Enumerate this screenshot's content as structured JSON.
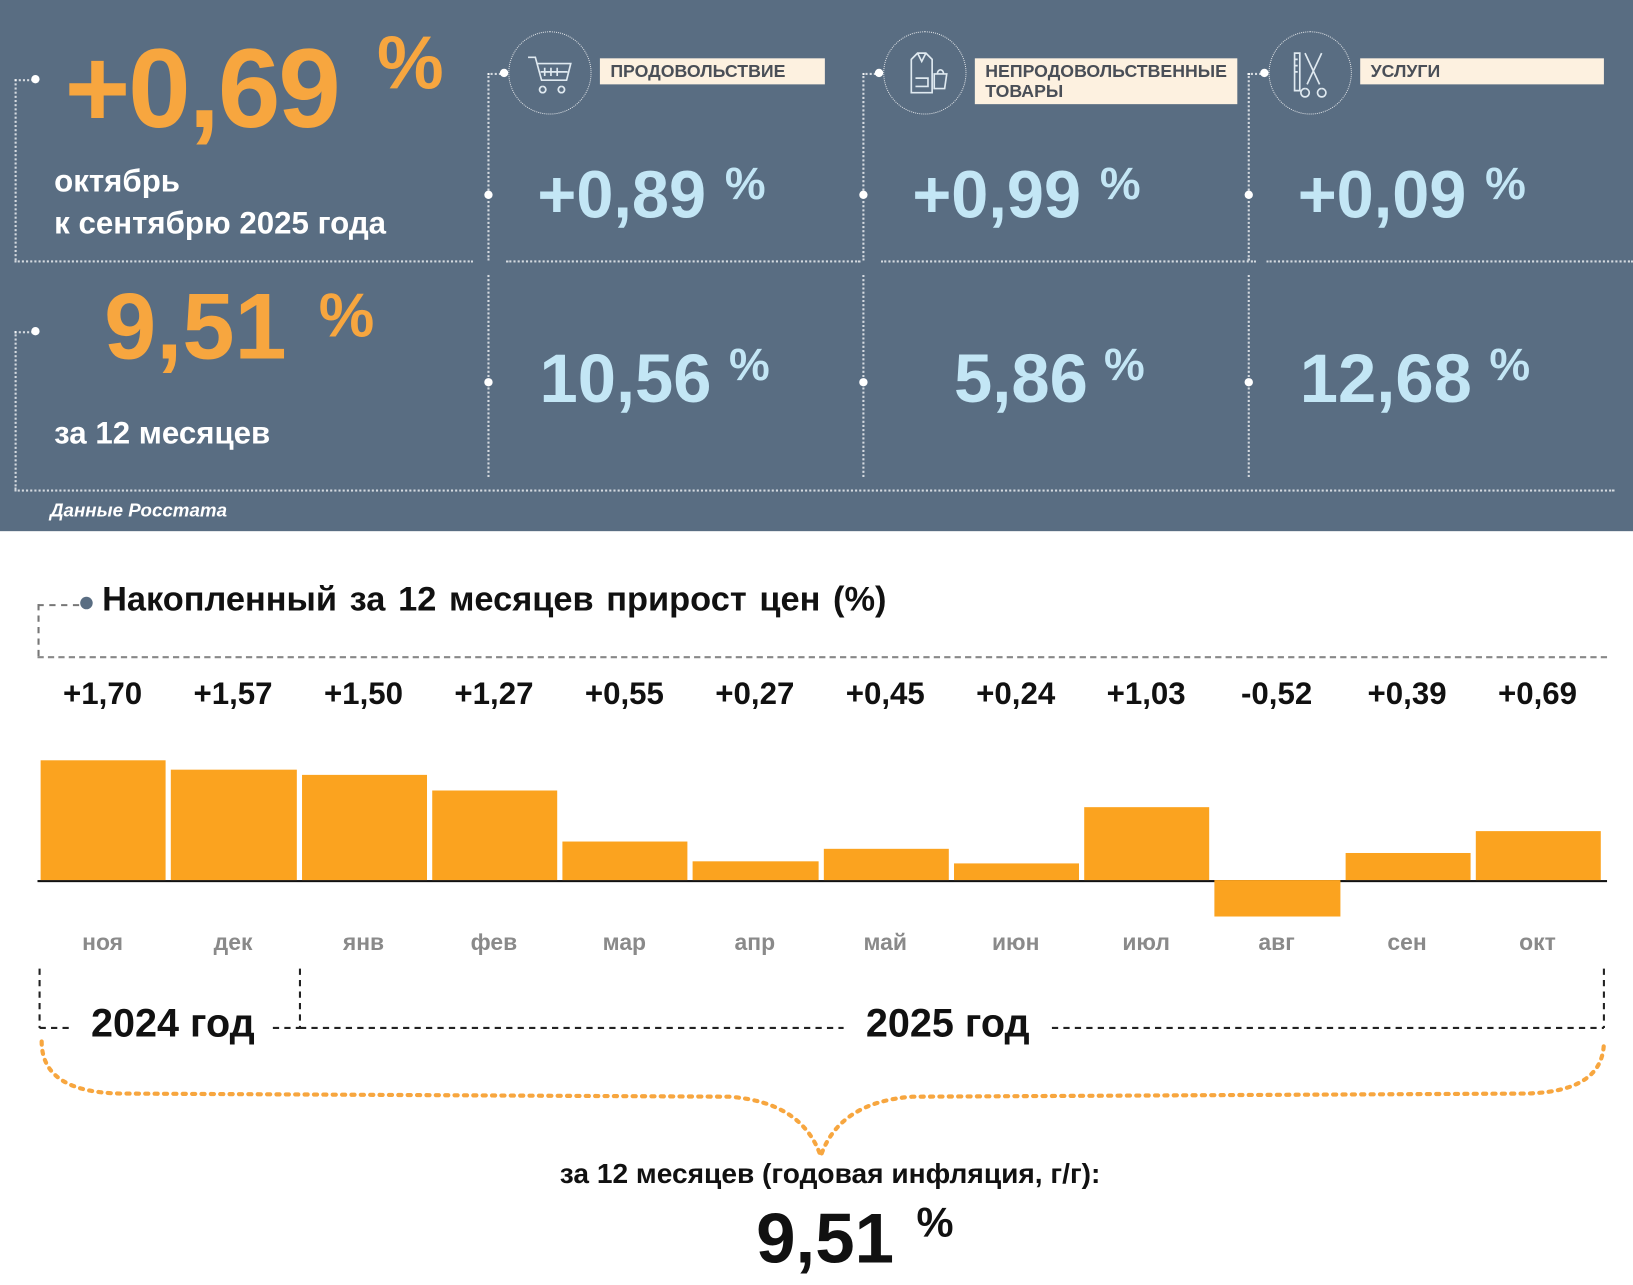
{
  "header": {
    "monthly_value": "+0,69",
    "percent": "%",
    "monthly_caption_1": "октябрь",
    "monthly_caption_2": "к сентябрю 2025 года",
    "annual_value": "9,51",
    "annual_caption": "за 12 месяцев",
    "source": "Данные Росстата"
  },
  "categories": [
    {
      "label": "ПРОДОВОЛЬСТВИЕ",
      "label_line2": "",
      "icon": "shopping-cart-icon",
      "monthly": "+0,89",
      "annual": "10,56"
    },
    {
      "label": "НЕПРОДОВОЛЬСТВЕННЫЕ",
      "label_line2": "ТОВАРЫ",
      "icon": "clothes-bag-icon",
      "monthly": "+0,99",
      "annual": "5,86"
    },
    {
      "label": "УСЛУГИ",
      "label_line2": "",
      "icon": "comb-scissors-icon",
      "monthly": "+0,09",
      "annual": "12,68"
    }
  ],
  "colors": {
    "panel": "#596d82",
    "accent_orange": "#f7a63f",
    "light_blue": "#c3e6f5",
    "bar": "#fba31f"
  },
  "chart_data": {
    "type": "bar",
    "title": "Накопленный за 12 месяцев прирост цен (%)",
    "categories": [
      "ноя",
      "дек",
      "янв",
      "фев",
      "мар",
      "апр",
      "май",
      "июн",
      "июл",
      "авг",
      "сен",
      "окт"
    ],
    "values": [
      1.7,
      1.57,
      1.5,
      1.27,
      0.55,
      0.27,
      0.45,
      0.24,
      1.03,
      -0.52,
      0.39,
      0.69
    ],
    "data_labels": [
      "+1,70",
      "+1,57",
      "+1,50",
      "+1,27",
      "+0,55",
      "+0,27",
      "+0,45",
      "+0,24",
      "+1,03",
      "-0,52",
      "+0,39",
      "+0,69"
    ],
    "year_labels": [
      "2024 год",
      "2025 год"
    ],
    "grid": false
  },
  "summary": {
    "caption": "за 12 месяцев (годовая инфляция, г/г):",
    "value": "9,51",
    "percent": "%"
  }
}
